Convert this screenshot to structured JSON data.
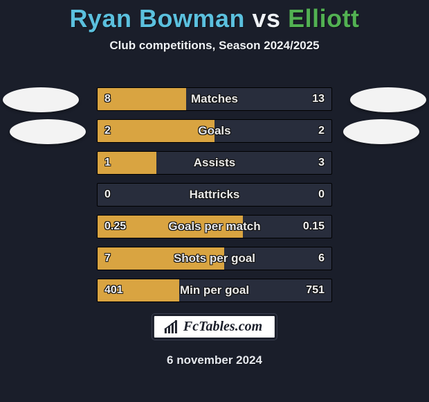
{
  "title": {
    "player1": "Ryan Bowman",
    "vs": "vs",
    "player2": "Elliott"
  },
  "subtitle": "Club competitions, Season 2024/2025",
  "date": "6 november 2024",
  "badge": {
    "text": "FcTables.com"
  },
  "colors": {
    "player1": "#5bc0de",
    "player2": "#52b152",
    "fill_left": "#d9a441",
    "fill_right": "#282d3c",
    "row_bg": "#282d3c",
    "page_bg": "#1a1e2a",
    "text": "#f2f2f2"
  },
  "rows": [
    {
      "label": "Matches",
      "left": "8",
      "right": "13",
      "left_pct": 38
    },
    {
      "label": "Goals",
      "left": "2",
      "right": "2",
      "left_pct": 50
    },
    {
      "label": "Assists",
      "left": "1",
      "right": "3",
      "left_pct": 25
    },
    {
      "label": "Hattricks",
      "left": "0",
      "right": "0",
      "left_pct": 0
    },
    {
      "label": "Goals per match",
      "left": "0.25",
      "right": "0.15",
      "left_pct": 62
    },
    {
      "label": "Shots per goal",
      "left": "7",
      "right": "6",
      "left_pct": 54
    },
    {
      "label": "Min per goal",
      "left": "401",
      "right": "751",
      "left_pct": 35
    }
  ]
}
